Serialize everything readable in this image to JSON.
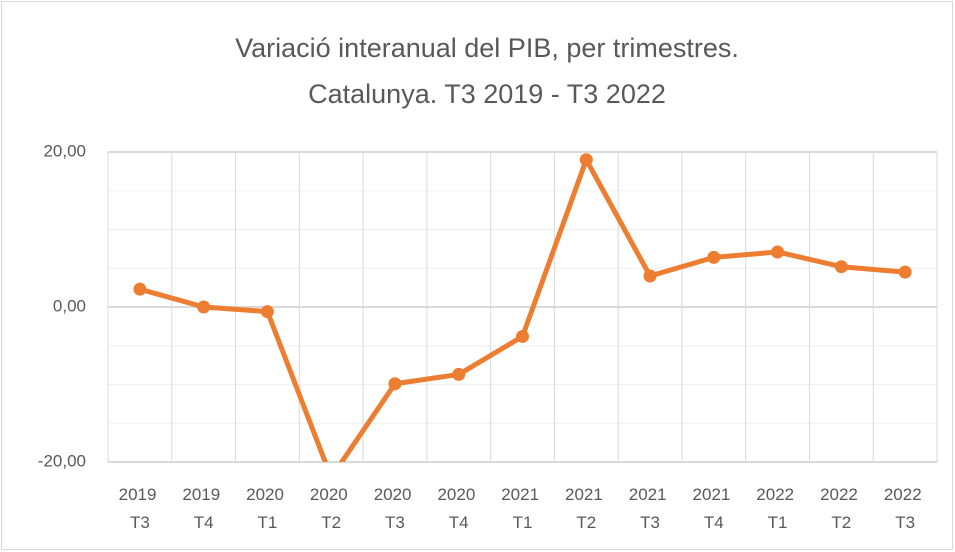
{
  "chart_data": {
    "type": "line",
    "title": "Variació interanual del PIB, per trimestres.",
    "subtitle": "Catalunya. T3 2019 - T3 2022",
    "categories": [
      "2019 T3",
      "2019 T4",
      "2020 T1",
      "2020 T2",
      "2020 T3",
      "2020 T4",
      "2021 T1",
      "2021 T2",
      "2021 T3",
      "2021 T4",
      "2022 T1",
      "2022 T2",
      "2022 T3"
    ],
    "series": [
      {
        "name": "PIB",
        "color": "#ed7d31",
        "values": [
          2.3,
          0.0,
          -0.6,
          -22,
          -9.9,
          -8.7,
          -3.8,
          19.0,
          4.0,
          6.4,
          7.1,
          5.2,
          4.5
        ]
      }
    ],
    "ylim": [
      -20,
      20
    ],
    "yticks": [
      {
        "value": -20,
        "label": "-20,00"
      },
      {
        "value": 0,
        "label": "0,00"
      },
      {
        "value": 20,
        "label": "20,00"
      }
    ],
    "yticks_minor": [
      -15,
      -10,
      -5,
      5,
      10,
      15
    ],
    "grid": true
  }
}
